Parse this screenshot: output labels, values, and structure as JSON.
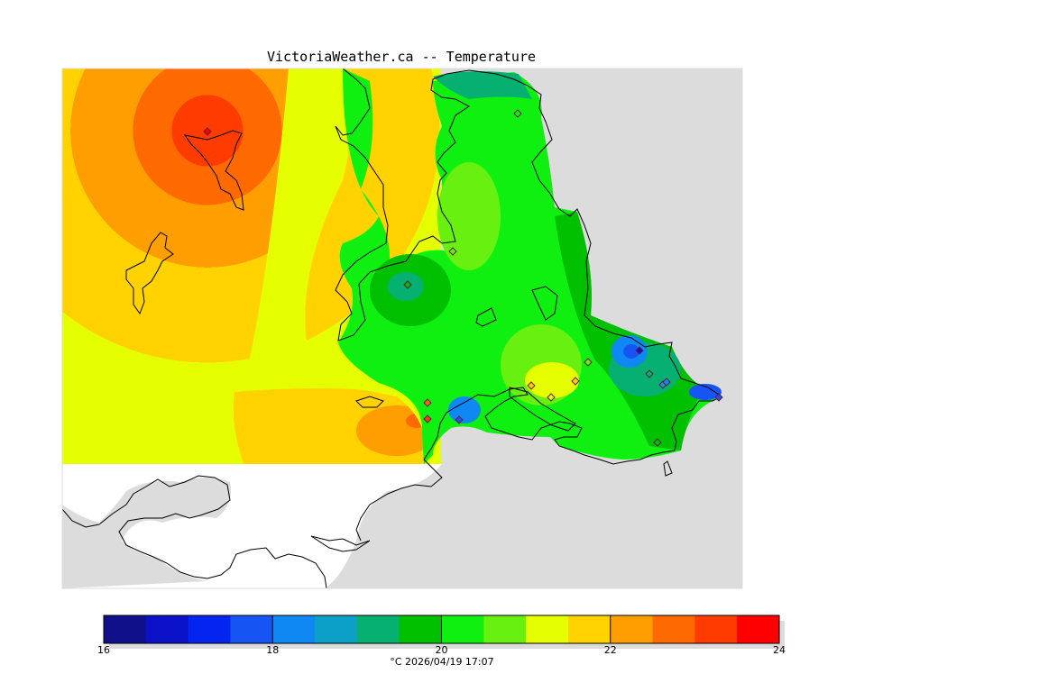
{
  "title": "VictoriaWeather.ca -- Temperature",
  "caption": "°C  2026/04/19 17:07",
  "colors": {
    "land_missing": "#dcdcdc",
    "outline": "#000000",
    "station_edge": "#6a1a3a"
  },
  "colorbar": {
    "min": 16,
    "max": 24,
    "step": 0.5,
    "tick_labels": [
      "16",
      "18",
      "20",
      "22",
      "24"
    ],
    "colors": [
      "#10108a",
      "#0c12c8",
      "#0424f0",
      "#1654f4",
      "#1088f4",
      "#0ca0c8",
      "#06b070",
      "#00c000",
      "#10f010",
      "#68f010",
      "#e6ff00",
      "#ffd200",
      "#ff9e00",
      "#ff6a00",
      "#ff3c00",
      "#ff0000"
    ]
  },
  "stations": [
    {
      "name": "station-north-island",
      "temp": 23.5
    },
    {
      "name": "station-saltspring",
      "temp": 20.0
    },
    {
      "name": "station-sidney",
      "temp": 20.5
    },
    {
      "name": "station-central",
      "temp": 19.5
    },
    {
      "name": "station-sooke-1",
      "temp": 22.5
    },
    {
      "name": "station-sooke-2",
      "temp": 23.0
    },
    {
      "name": "station-metchosin",
      "temp": 17.5
    },
    {
      "name": "station-colwood-1",
      "temp": 21.5
    },
    {
      "name": "station-colwood-2",
      "temp": 21.0
    },
    {
      "name": "station-view-royal",
      "temp": 21.5
    },
    {
      "name": "station-saanich",
      "temp": 20.5
    },
    {
      "name": "station-uvic",
      "temp": 16.8
    },
    {
      "name": "station-oak-bay-1",
      "temp": 19.0
    },
    {
      "name": "station-oak-bay-2",
      "temp": 18.5
    },
    {
      "name": "station-oak-bay-3",
      "temp": 18.0
    },
    {
      "name": "station-cadboro",
      "temp": 17.5
    },
    {
      "name": "station-victoria",
      "temp": 19.5
    }
  ]
}
